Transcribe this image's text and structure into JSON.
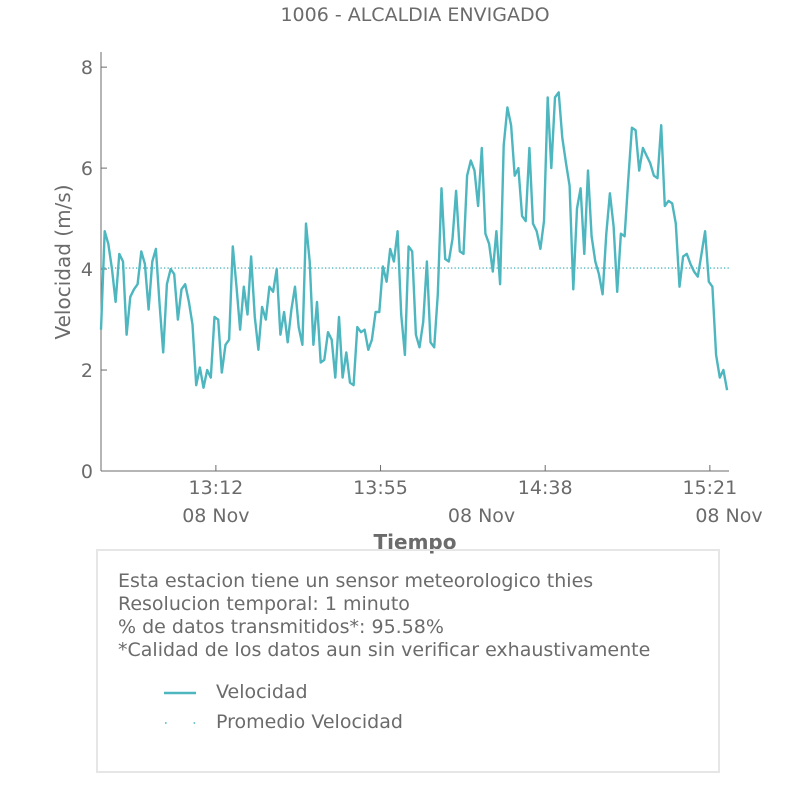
{
  "chart_data": {
    "type": "line",
    "title": "1006 - ALCALDIA ENVIGADO",
    "xlabel": "Tiempo",
    "ylabel": "Velocidad (m/s)",
    "ylim": [
      0,
      8.3
    ],
    "yticks": [
      0,
      2,
      4,
      6,
      8
    ],
    "x_unit": "minutes after 12:42",
    "xlim": [
      0,
      164
    ],
    "xticks": [
      {
        "x": 30,
        "time": "13:12",
        "date": "08 Nov"
      },
      {
        "x": 73,
        "time": "13:55",
        "date": "08 Nov"
      },
      {
        "x": 116,
        "time": "14:38",
        "date": "08 Nov"
      },
      {
        "x": 159,
        "time": "15:21",
        "date": "08 Nov"
      }
    ],
    "series": [
      {
        "name": "Velocidad",
        "color": "#4db6bf",
        "style": "solid",
        "y": [
          2.8,
          4.75,
          4.5,
          4.0,
          3.35,
          4.3,
          4.15,
          2.7,
          3.45,
          3.6,
          3.7,
          4.35,
          4.1,
          3.2,
          4.15,
          4.4,
          3.3,
          2.35,
          3.7,
          4.0,
          3.9,
          3.0,
          3.6,
          3.7,
          3.35,
          2.9,
          1.7,
          2.05,
          1.65,
          2.0,
          1.85,
          3.05,
          3.0,
          1.95,
          2.5,
          2.6,
          4.45,
          3.65,
          2.8,
          3.65,
          3.1,
          4.25,
          3.05,
          2.4,
          3.25,
          3.0,
          3.65,
          3.55,
          4.0,
          2.7,
          3.15,
          2.55,
          3.2,
          3.65,
          2.85,
          2.5,
          4.9,
          4.15,
          2.5,
          3.35,
          2.15,
          2.2,
          2.75,
          2.6,
          1.85,
          3.05,
          1.85,
          2.35,
          1.75,
          1.7,
          2.85,
          2.75,
          2.8,
          2.4,
          2.6,
          3.15,
          3.15,
          4.05,
          3.75,
          4.4,
          4.15,
          4.75,
          3.1,
          2.3,
          4.45,
          4.35,
          2.7,
          2.45,
          2.95,
          4.15,
          2.55,
          2.45,
          3.5,
          5.6,
          4.2,
          4.15,
          4.6,
          5.55,
          4.35,
          4.3,
          5.85,
          6.15,
          5.95,
          5.25,
          6.4,
          4.7,
          4.5,
          3.95,
          4.75,
          3.7,
          6.45,
          7.2,
          6.85,
          5.85,
          6.0,
          5.05,
          4.95,
          6.4,
          4.9,
          4.75,
          4.4,
          4.95,
          7.4,
          6.0,
          7.4,
          7.5,
          6.6,
          6.1,
          5.65,
          3.6,
          5.2,
          5.6,
          4.3,
          5.95,
          4.65,
          4.15,
          3.9,
          3.5,
          4.7,
          5.5,
          4.85,
          3.55,
          4.7,
          4.65,
          5.75,
          6.8,
          6.75,
          5.95,
          6.4,
          6.25,
          6.1,
          5.85,
          5.8,
          6.85,
          5.25,
          5.35,
          5.3,
          4.9,
          3.65,
          4.25,
          4.3,
          4.1,
          3.95,
          3.85,
          4.3,
          4.75,
          3.75,
          3.65,
          2.3,
          1.85,
          2.0,
          1.6
        ]
      },
      {
        "name": "Promedio Velocidad",
        "color": "#4db6bf",
        "style": "dotted",
        "value": 4.02
      }
    ],
    "grid": false,
    "legend": "inside info box, bottom-left"
  },
  "info": {
    "line1": "Esta estacion tiene un sensor meteorologico thies",
    "line2": "Resolucion temporal: 1 minuto",
    "line3": "% de datos transmitidos*: 95.58%",
    "line4": "*Calidad de los datos aun sin verificar exhaustivamente"
  },
  "legend": {
    "item1": "Velocidad",
    "item2": "Promedio Velocidad"
  }
}
